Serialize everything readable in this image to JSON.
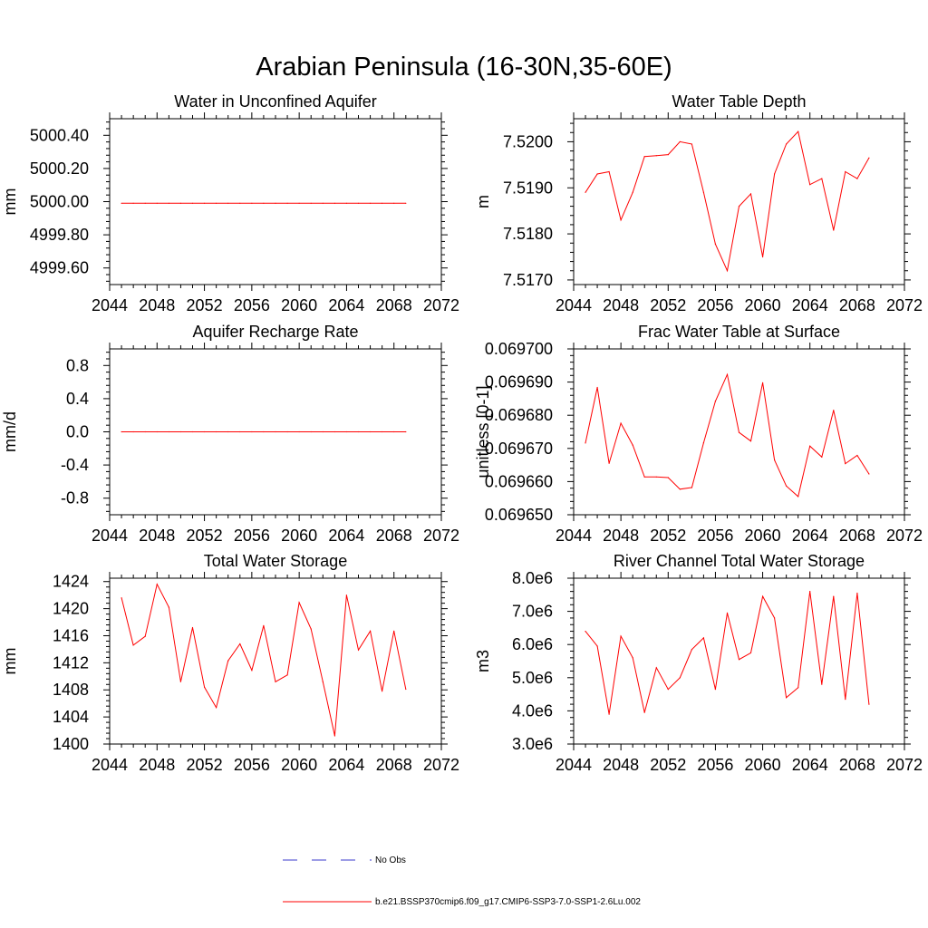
{
  "figure": {
    "title": "Arabian Peninsula (16-30N,35-60E)"
  },
  "legend": {
    "entries": [
      {
        "label": "No Obs",
        "color": "#3a3acc",
        "dash": true
      },
      {
        "label": "b.e21.BSSP370cmip6.f09_g17.CMIP6-SSP3-7.0-SSP1-2.6Lu.002",
        "color": "#ff0000",
        "dash": false
      }
    ]
  },
  "chart_data": [
    {
      "type": "line",
      "title": "Water in Unconfined Aquifer",
      "ylabel": "mm",
      "xlim": [
        2044,
        2072
      ],
      "ylim": [
        4999.5,
        5000.5
      ],
      "xticks": [
        2044,
        2048,
        2052,
        2056,
        2060,
        2064,
        2068,
        2072
      ],
      "yticks": [
        4999.6,
        4999.8,
        5000.0,
        5000.2,
        5000.4
      ],
      "ytick_labels": [
        "4999.60",
        "4999.80",
        "5000.00",
        "5000.20",
        "5000.40"
      ],
      "color": "#ff0000",
      "x": [
        2045,
        2046,
        2047,
        2048,
        2049,
        2050,
        2051,
        2052,
        2053,
        2054,
        2055,
        2056,
        2057,
        2058,
        2059,
        2060,
        2061,
        2062,
        2063,
        2064,
        2065,
        2066,
        2067,
        2068,
        2069
      ],
      "y": [
        4999.99,
        4999.99,
        4999.99,
        4999.99,
        4999.99,
        4999.99,
        4999.99,
        4999.99,
        4999.99,
        4999.99,
        4999.99,
        4999.99,
        4999.99,
        4999.99,
        4999.99,
        4999.99,
        4999.99,
        4999.99,
        4999.99,
        4999.99,
        4999.99,
        4999.99,
        4999.99,
        4999.99,
        4999.99
      ]
    },
    {
      "type": "line",
      "title": "Water Table Depth",
      "ylabel": "m",
      "xlim": [
        2044,
        2072
      ],
      "ylim": [
        7.5169,
        7.5205
      ],
      "xticks": [
        2044,
        2048,
        2052,
        2056,
        2060,
        2064,
        2068,
        2072
      ],
      "yticks": [
        7.517,
        7.518,
        7.519,
        7.52
      ],
      "ytick_labels": [
        "7.5170",
        "7.5180",
        "7.5190",
        "7.5200"
      ],
      "color": "#ff0000",
      "x": [
        2045,
        2046,
        2047,
        2048,
        2049,
        2050,
        2051,
        2052,
        2053,
        2054,
        2055,
        2056,
        2057,
        2058,
        2059,
        2060,
        2061,
        2062,
        2063,
        2064,
        2065,
        2066,
        2067,
        2068,
        2069
      ],
      "y": [
        7.5189,
        7.5193,
        7.51935,
        7.5183,
        7.5189,
        7.51968,
        7.5197,
        7.51972,
        7.52,
        7.51995,
        7.5189,
        7.51778,
        7.5172,
        7.5186,
        7.51887,
        7.5175,
        7.5193,
        7.51995,
        7.52022,
        7.51907,
        7.5192,
        7.51808,
        7.51935,
        7.5192,
        7.51965
      ]
    },
    {
      "type": "line",
      "title": "Aquifer Recharge Rate",
      "ylabel": "mm/d",
      "xlim": [
        2044,
        2072
      ],
      "ylim": [
        -1.0,
        1.0
      ],
      "xticks": [
        2044,
        2048,
        2052,
        2056,
        2060,
        2064,
        2068,
        2072
      ],
      "yticks": [
        -0.8,
        -0.4,
        0.0,
        0.4,
        0.8
      ],
      "ytick_labels": [
        "-0.8",
        "-0.4",
        "0.0",
        "0.4",
        "0.8"
      ],
      "color": "#ff0000",
      "x": [
        2045,
        2046,
        2047,
        2048,
        2049,
        2050,
        2051,
        2052,
        2053,
        2054,
        2055,
        2056,
        2057,
        2058,
        2059,
        2060,
        2061,
        2062,
        2063,
        2064,
        2065,
        2066,
        2067,
        2068,
        2069
      ],
      "y": [
        0,
        0,
        0,
        0,
        0,
        0,
        0,
        0,
        0,
        0,
        0,
        0,
        0,
        0,
        0,
        0,
        0,
        0,
        0,
        0,
        0,
        0,
        0,
        0,
        0
      ]
    },
    {
      "type": "line",
      "title": "Frac Water Table at Surface",
      "ylabel": "unitless [0-1]",
      "xlim": [
        2044,
        2072
      ],
      "ylim": [
        0.06965,
        0.0697
      ],
      "xticks": [
        2044,
        2048,
        2052,
        2056,
        2060,
        2064,
        2068,
        2072
      ],
      "yticks": [
        0.06965,
        0.06966,
        0.06967,
        0.06968,
        0.06969,
        0.0697
      ],
      "ytick_labels": [
        "0.069650",
        "0.069660",
        "0.069670",
        "0.069680",
        "0.069690",
        "0.069700"
      ],
      "color": "#ff0000",
      "x": [
        2045,
        2046,
        2047,
        2048,
        2049,
        2050,
        2051,
        2052,
        2053,
        2054,
        2055,
        2056,
        2057,
        2058,
        2059,
        2060,
        2061,
        2062,
        2063,
        2064,
        2065,
        2066,
        2067,
        2068,
        2069
      ],
      "y": [
        0.0696716,
        0.0696884,
        0.0696655,
        0.0696776,
        0.069671,
        0.0696614,
        0.0696614,
        0.0696612,
        0.0696577,
        0.0696582,
        0.0696717,
        0.0696842,
        0.0696923,
        0.0696748,
        0.0696722,
        0.0696898,
        0.0696665,
        0.0696587,
        0.0696555,
        0.0696707,
        0.0696674,
        0.0696815,
        0.0696654,
        0.0696679,
        0.0696623
      ]
    },
    {
      "type": "line",
      "title": "Total Water Storage",
      "ylabel": "mm",
      "xlim": [
        2044,
        2072
      ],
      "ylim": [
        1400,
        1424.5
      ],
      "xticks": [
        2044,
        2048,
        2052,
        2056,
        2060,
        2064,
        2068,
        2072
      ],
      "yticks": [
        1400,
        1404,
        1408,
        1412,
        1416,
        1420,
        1424
      ],
      "ytick_labels": [
        "1400",
        "1404",
        "1408",
        "1412",
        "1416",
        "1420",
        "1424"
      ],
      "color": "#ff0000",
      "x": [
        2045,
        2046,
        2047,
        2048,
        2049,
        2050,
        2051,
        2052,
        2053,
        2054,
        2055,
        2056,
        2057,
        2058,
        2059,
        2060,
        2061,
        2062,
        2063,
        2064,
        2065,
        2066,
        2067,
        2068,
        2069
      ],
      "y": [
        1421.6,
        1414.6,
        1415.9,
        1423.6,
        1420.2,
        1409.2,
        1417.2,
        1408.4,
        1405.4,
        1412.3,
        1414.8,
        1410.9,
        1417.5,
        1409.2,
        1410.2,
        1420.9,
        1417.0,
        1409.2,
        1401.2,
        1422.0,
        1413.9,
        1416.7,
        1407.8,
        1416.7,
        1408.1
      ]
    },
    {
      "type": "line",
      "title": "River Channel Total Water Storage",
      "ylabel": "m3",
      "xlim": [
        2044,
        2072
      ],
      "ylim": [
        3000000,
        8000000
      ],
      "xticks": [
        2044,
        2048,
        2052,
        2056,
        2060,
        2064,
        2068,
        2072
      ],
      "yticks": [
        3000000,
        4000000,
        5000000,
        6000000,
        7000000,
        8000000
      ],
      "ytick_labels": [
        "3.0e6",
        "4.0e6",
        "5.0e6",
        "6.0e6",
        "7.0e6",
        "8.0e6"
      ],
      "color": "#ff0000",
      "x": [
        2045,
        2046,
        2047,
        2048,
        2049,
        2050,
        2051,
        2052,
        2053,
        2054,
        2055,
        2056,
        2057,
        2058,
        2059,
        2060,
        2061,
        2062,
        2063,
        2064,
        2065,
        2066,
        2067,
        2068,
        2069
      ],
      "y": [
        6400000,
        5950000,
        3900000,
        6250000,
        5600000,
        3950000,
        5300000,
        4650000,
        5000000,
        5850000,
        6200000,
        4650000,
        6950000,
        5550000,
        5750000,
        7450000,
        6800000,
        4400000,
        4700000,
        7600000,
        4800000,
        7450000,
        4350000,
        7550000,
        4200000
      ]
    }
  ]
}
